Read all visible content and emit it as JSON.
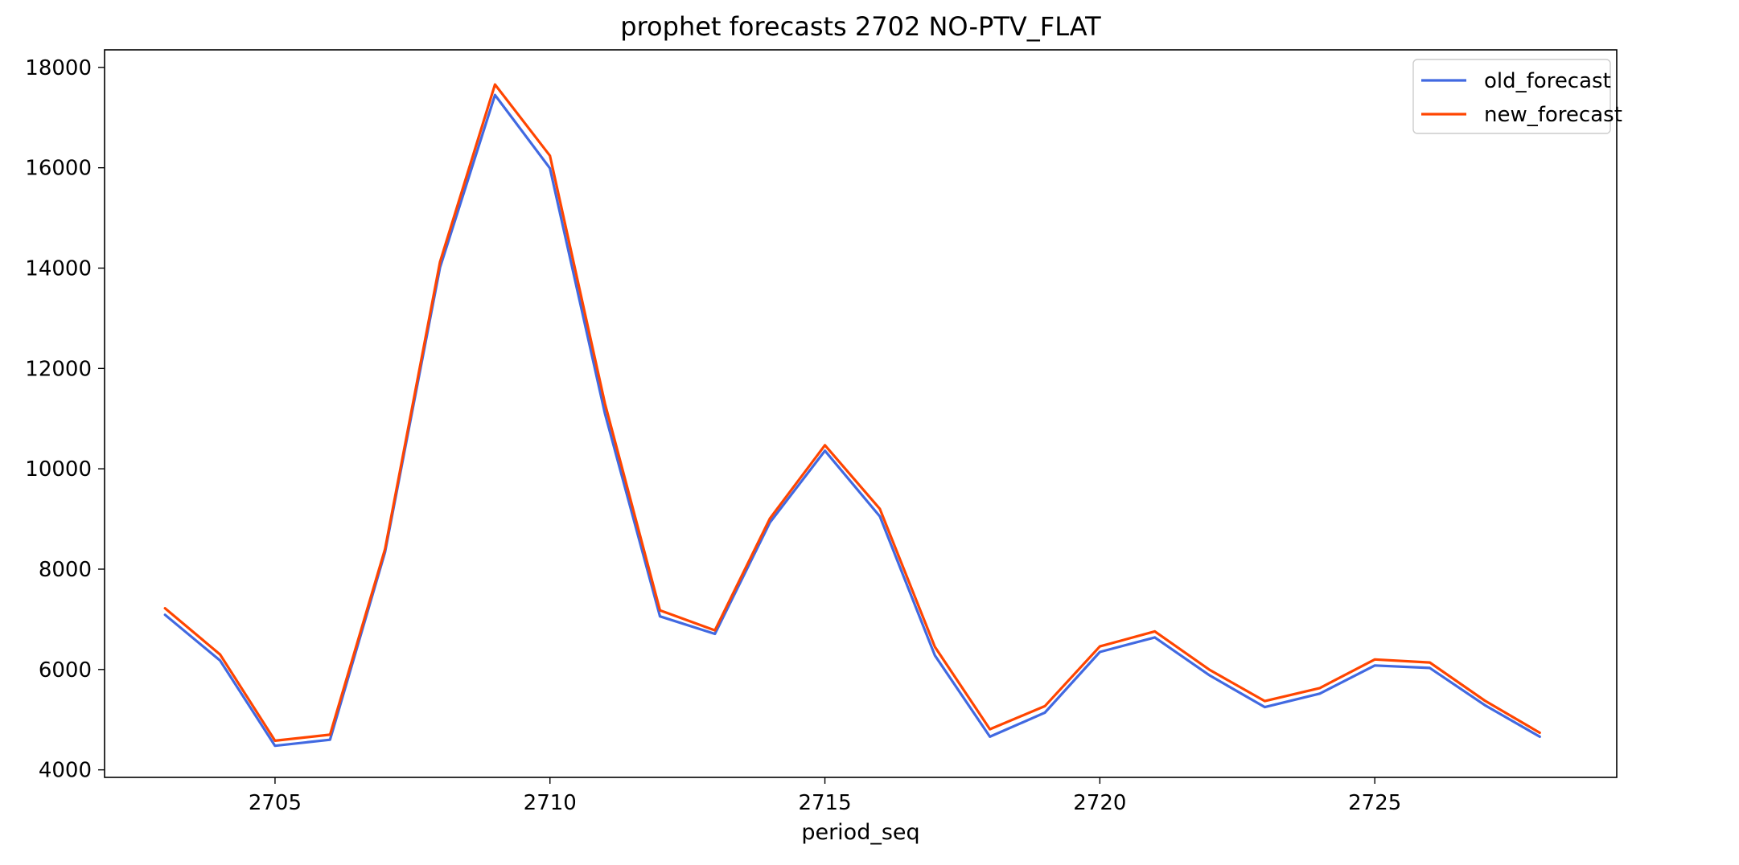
{
  "chart_data": {
    "type": "line",
    "title": "prophet forecasts 2702 NO-PTV_FLAT",
    "xlabel": "period_seq",
    "ylabel": "",
    "xlim": [
      2701.9,
      2729.4
    ],
    "ylim": [
      3850,
      18350
    ],
    "xticks": [
      2705,
      2710,
      2715,
      2720,
      2725
    ],
    "yticks": [
      4000,
      6000,
      8000,
      10000,
      12000,
      14000,
      16000,
      18000
    ],
    "x": [
      2703,
      2704,
      2705,
      2706,
      2707,
      2708,
      2709,
      2710,
      2711,
      2712,
      2713,
      2714,
      2715,
      2716,
      2717,
      2718,
      2719,
      2720,
      2721,
      2722,
      2723,
      2724,
      2725,
      2726,
      2727,
      2728
    ],
    "series": [
      {
        "name": "old_forecast",
        "color": "#4169e1",
        "values": [
          7090,
          6180,
          4480,
          4600,
          8340,
          14010,
          17450,
          15990,
          11100,
          7060,
          6710,
          8930,
          10360,
          9050,
          6280,
          4660,
          5140,
          6350,
          6640,
          5880,
          5250,
          5520,
          6080,
          6030,
          5290,
          4660
        ]
      },
      {
        "name": "new_forecast",
        "color": "#ff4500",
        "values": [
          7220,
          6300,
          4580,
          4700,
          8400,
          14120,
          17660,
          16240,
          11300,
          7180,
          6780,
          9010,
          10470,
          9200,
          6450,
          4810,
          5270,
          6460,
          6760,
          5990,
          5370,
          5630,
          6200,
          6140,
          5380,
          4740
        ]
      }
    ],
    "grid": false,
    "legend_position": "top-right"
  }
}
